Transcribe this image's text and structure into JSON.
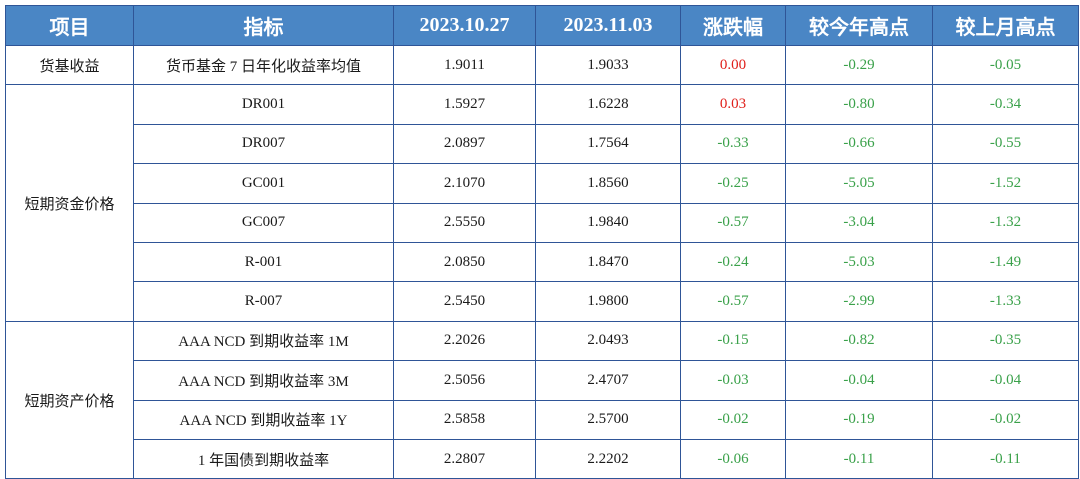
{
  "colors": {
    "header_bg": "#4a86c5",
    "header_text": "#ffffff",
    "border": "#2f5597",
    "positive": "#e0201b",
    "negative": "#3aa14a"
  },
  "headers": [
    "项目",
    "指标",
    "2023.10.27",
    "2023.11.03",
    "涨跌幅",
    "较今年高点",
    "较上月高点"
  ],
  "groups": [
    {
      "category": "货基收益",
      "rows": [
        {
          "indicator": "货币基金 7 日年化收益率均值",
          "d1": "1.9011",
          "d2": "1.9033",
          "change": "0.00",
          "change_color": "red",
          "vs_year_high": "-0.29",
          "vs_month_high": "-0.05"
        }
      ]
    },
    {
      "category": "短期资金价格",
      "rows": [
        {
          "indicator": "DR001",
          "d1": "1.5927",
          "d2": "1.6228",
          "change": "0.03",
          "change_color": "red",
          "vs_year_high": "-0.80",
          "vs_month_high": "-0.34"
        },
        {
          "indicator": "DR007",
          "d1": "2.0897",
          "d2": "1.7564",
          "change": "-0.33",
          "change_color": "green",
          "vs_year_high": "-0.66",
          "vs_month_high": "-0.55"
        },
        {
          "indicator": "GC001",
          "d1": "2.1070",
          "d2": "1.8560",
          "change": "-0.25",
          "change_color": "green",
          "vs_year_high": "-5.05",
          "vs_month_high": "-1.52"
        },
        {
          "indicator": "GC007",
          "d1": "2.5550",
          "d2": "1.9840",
          "change": "-0.57",
          "change_color": "green",
          "vs_year_high": "-3.04",
          "vs_month_high": "-1.32"
        },
        {
          "indicator": "R-001",
          "d1": "2.0850",
          "d2": "1.8470",
          "change": "-0.24",
          "change_color": "green",
          "vs_year_high": "-5.03",
          "vs_month_high": "-1.49"
        },
        {
          "indicator": "R-007",
          "d1": "2.5450",
          "d2": "1.9800",
          "change": "-0.57",
          "change_color": "green",
          "vs_year_high": "-2.99",
          "vs_month_high": "-1.33"
        }
      ]
    },
    {
      "category": "短期资产价格",
      "rows": [
        {
          "indicator": "AAA NCD 到期收益率 1M",
          "d1": "2.2026",
          "d2": "2.0493",
          "change": "-0.15",
          "change_color": "green",
          "vs_year_high": "-0.82",
          "vs_month_high": "-0.35"
        },
        {
          "indicator": "AAA NCD 到期收益率 3M",
          "d1": "2.5056",
          "d2": "2.4707",
          "change": "-0.03",
          "change_color": "green",
          "vs_year_high": "-0.04",
          "vs_month_high": "-0.04"
        },
        {
          "indicator": "AAA NCD 到期收益率 1Y",
          "d1": "2.5858",
          "d2": "2.5700",
          "change": "-0.02",
          "change_color": "green",
          "vs_year_high": "-0.19",
          "vs_month_high": "-0.02"
        },
        {
          "indicator": "1 年国债到期收益率",
          "d1": "2.2807",
          "d2": "2.2202",
          "change": "-0.06",
          "change_color": "green",
          "vs_year_high": "-0.11",
          "vs_month_high": "-0.11"
        }
      ]
    }
  ]
}
